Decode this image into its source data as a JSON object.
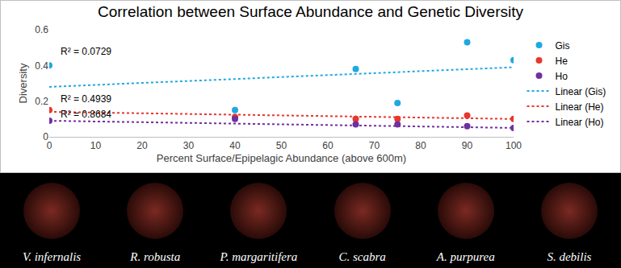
{
  "chart_data": {
    "type": "scatter",
    "title": "Correlation between Surface Abundance and Genetic Diversity",
    "x_label": "Percent Surface/Epipelagic Abundance (above 600m)",
    "y_label": "Diversity",
    "xlim": [
      0,
      100
    ],
    "xticks": [
      0,
      10,
      20,
      30,
      40,
      50,
      60,
      70,
      80,
      90,
      100
    ],
    "ylim": [
      0,
      0.6
    ],
    "yticks": [
      0,
      0.2,
      0.4,
      0.6
    ],
    "grid": false,
    "legend": "right",
    "series": [
      {
        "name": "Gis",
        "type": "scatter",
        "marker": "circle",
        "color": "#1fa8e1",
        "x": [
          0,
          40,
          66,
          75,
          90,
          100
        ],
        "values": [
          0.4,
          0.15,
          0.38,
          0.19,
          0.53,
          0.43
        ]
      },
      {
        "name": "He",
        "type": "scatter",
        "marker": "circle",
        "color": "#e8372c",
        "x": [
          0,
          40,
          66,
          75,
          90,
          100
        ],
        "values": [
          0.15,
          0.11,
          0.1,
          0.1,
          0.12,
          0.1
        ]
      },
      {
        "name": "Ho",
        "type": "scatter",
        "marker": "circle",
        "color": "#7030a0",
        "x": [
          0,
          40,
          66,
          75,
          90,
          100
        ],
        "values": [
          0.09,
          0.1,
          0.07,
          0.07,
          0.06,
          0.05
        ]
      },
      {
        "name": "Linear (Gis)",
        "type": "line",
        "line_style": "dotted",
        "color": "#1fa8e1",
        "x": [
          0,
          100
        ],
        "values": [
          0.28,
          0.39
        ]
      },
      {
        "name": "Linear (He)",
        "type": "line",
        "line_style": "dotted",
        "color": "#e8372c",
        "x": [
          0,
          100
        ],
        "values": [
          0.14,
          0.1
        ]
      },
      {
        "name": "Linear (Ho)",
        "type": "line",
        "line_style": "dotted",
        "color": "#7030a0",
        "x": [
          0,
          100
        ],
        "values": [
          0.09,
          0.05
        ]
      }
    ],
    "annotations": [
      {
        "text": "R² = 0.0729",
        "x": 2,
        "y": 0.48
      },
      {
        "text": "R² = 0.4939",
        "x": 2,
        "y": 0.21
      },
      {
        "text": "R² = 0.8684",
        "x": 2,
        "y": 0.125
      }
    ]
  },
  "photo_captions": [
    "V. infernalis",
    "R. robusta",
    "P. margaritifera",
    "C. scabra",
    "A. purpurea",
    "S. debilis"
  ]
}
